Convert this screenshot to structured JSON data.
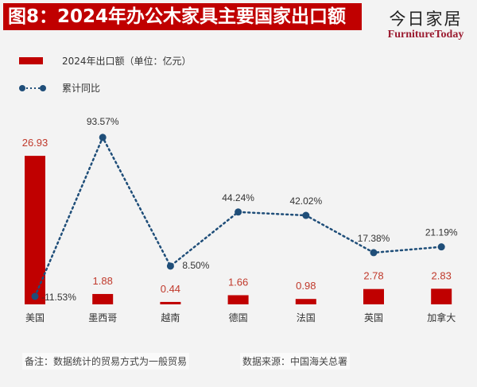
{
  "header": {
    "title": "图8：2024年办公木家具主要国家出口额",
    "logo_cn": "今日家居",
    "logo_en": "FurnitureToday"
  },
  "footer": {
    "note": "备注：数据统计的贸易方式为一般贸易",
    "source": "数据来源：中国海关总署"
  },
  "chart_data": {
    "type": "bar+line",
    "categories": [
      "美国",
      "墨西哥",
      "越南",
      "德国",
      "法国",
      "英国",
      "加拿大"
    ],
    "series": [
      {
        "name": "2024年出口额（单位：亿元）",
        "type": "bar",
        "color": "#c00000",
        "values": [
          26.93,
          1.88,
          0.44,
          1.66,
          0.98,
          2.78,
          2.83
        ],
        "labels": [
          "26.93",
          "1.88",
          "0.44",
          "1.66",
          "0.98",
          "2.78",
          "2.83"
        ]
      },
      {
        "name": "累计同比",
        "type": "line",
        "style": "dotted",
        "color": "#1f4e79",
        "values": [
          -11.53,
          93.57,
          8.5,
          44.24,
          42.02,
          17.38,
          21.19
        ],
        "labels": [
          "-11.53%",
          "93.57%",
          "8.50%",
          "44.24%",
          "42.02%",
          "17.38%",
          "21.19%"
        ]
      }
    ],
    "grid": false,
    "legend": "top-left"
  }
}
